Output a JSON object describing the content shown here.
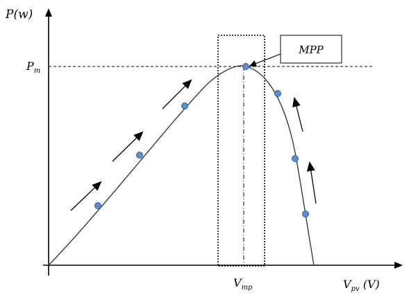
{
  "axes": {
    "y_label": {
      "main": "P",
      "rest": "(w)"
    },
    "x_label": {
      "main": "V",
      "sub": "pv",
      "rest": " (V)"
    },
    "pm_label": {
      "main": "P",
      "sub": "m"
    },
    "vmp_label": {
      "main": "V",
      "sub": "mp"
    }
  },
  "callout": {
    "label": "MPP"
  },
  "colors": {
    "axis": "#000000",
    "curve": "#3a3a3a",
    "point_fill": "#5b8fd4",
    "point_stroke": "#2f5f9a"
  },
  "icons": {
    "arrows": "trend-arrow-icon"
  }
}
